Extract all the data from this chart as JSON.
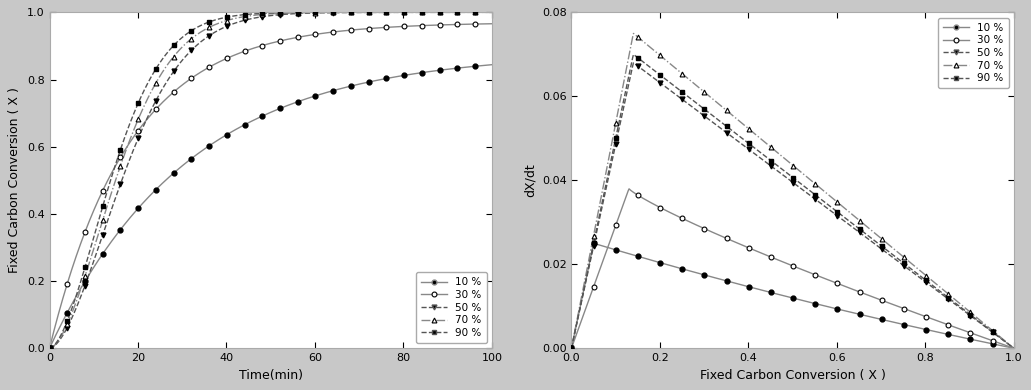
{
  "left_xlabel": "Time(min)",
  "left_ylabel": "Fixed Carbon Conversion ( X )",
  "left_xlim": [
    0,
    100
  ],
  "left_ylim": [
    0.0,
    1.0
  ],
  "left_xticks": [
    0,
    20,
    40,
    60,
    80,
    100
  ],
  "left_yticks": [
    0.0,
    0.2,
    0.4,
    0.6,
    0.8,
    1.0
  ],
  "right_xlabel": "Fixed Carbon Conversion ( X )",
  "right_ylabel": "dX/dt",
  "right_xlim": [
    0.0,
    1.0
  ],
  "right_ylim": [
    0.0,
    0.08
  ],
  "right_xticks": [
    0.0,
    0.2,
    0.4,
    0.6,
    0.8,
    1.0
  ],
  "right_yticks": [
    0.0,
    0.02,
    0.04,
    0.06,
    0.08
  ],
  "series_labels": [
    "10 %",
    "30 %",
    "50 %",
    "70 %",
    "90 %"
  ],
  "fig_bg_color": "#c8c8c8",
  "plot_bg_color": "#ffffff",
  "line_color_solid": "#888888",
  "line_color_dash": "#555555",
  "marker_color": "#000000",
  "figsize": [
    10.31,
    3.9
  ],
  "dpi": 100
}
